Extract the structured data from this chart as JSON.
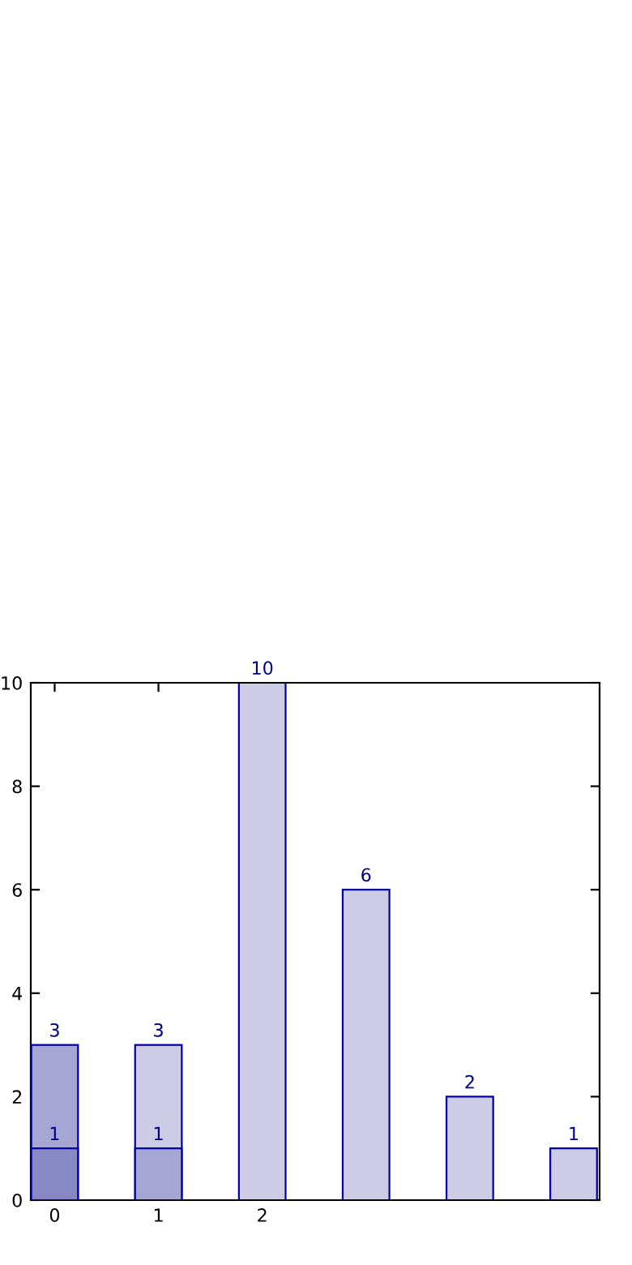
{
  "chart_data": {
    "type": "bar",
    "x": [
      0,
      1,
      2,
      3,
      4,
      5
    ],
    "series": [
      {
        "color": "#ccccE6",
        "values": [
          null,
          3,
          10,
          6,
          2,
          1
        ]
      },
      {
        "color": "#a6a6d4",
        "values": [
          3,
          1,
          null,
          null,
          null,
          null
        ]
      },
      {
        "color": "#8888c4",
        "values": [
          1,
          null,
          null,
          null,
          null,
          null
        ]
      }
    ],
    "xlim": [
      -0.23,
      5.25
    ],
    "xticks": [
      0,
      1,
      2
    ],
    "ylim": [
      0,
      10
    ],
    "yticks": [
      0,
      2,
      4,
      6,
      8,
      10
    ],
    "data_labels": true,
    "grid": false
  }
}
